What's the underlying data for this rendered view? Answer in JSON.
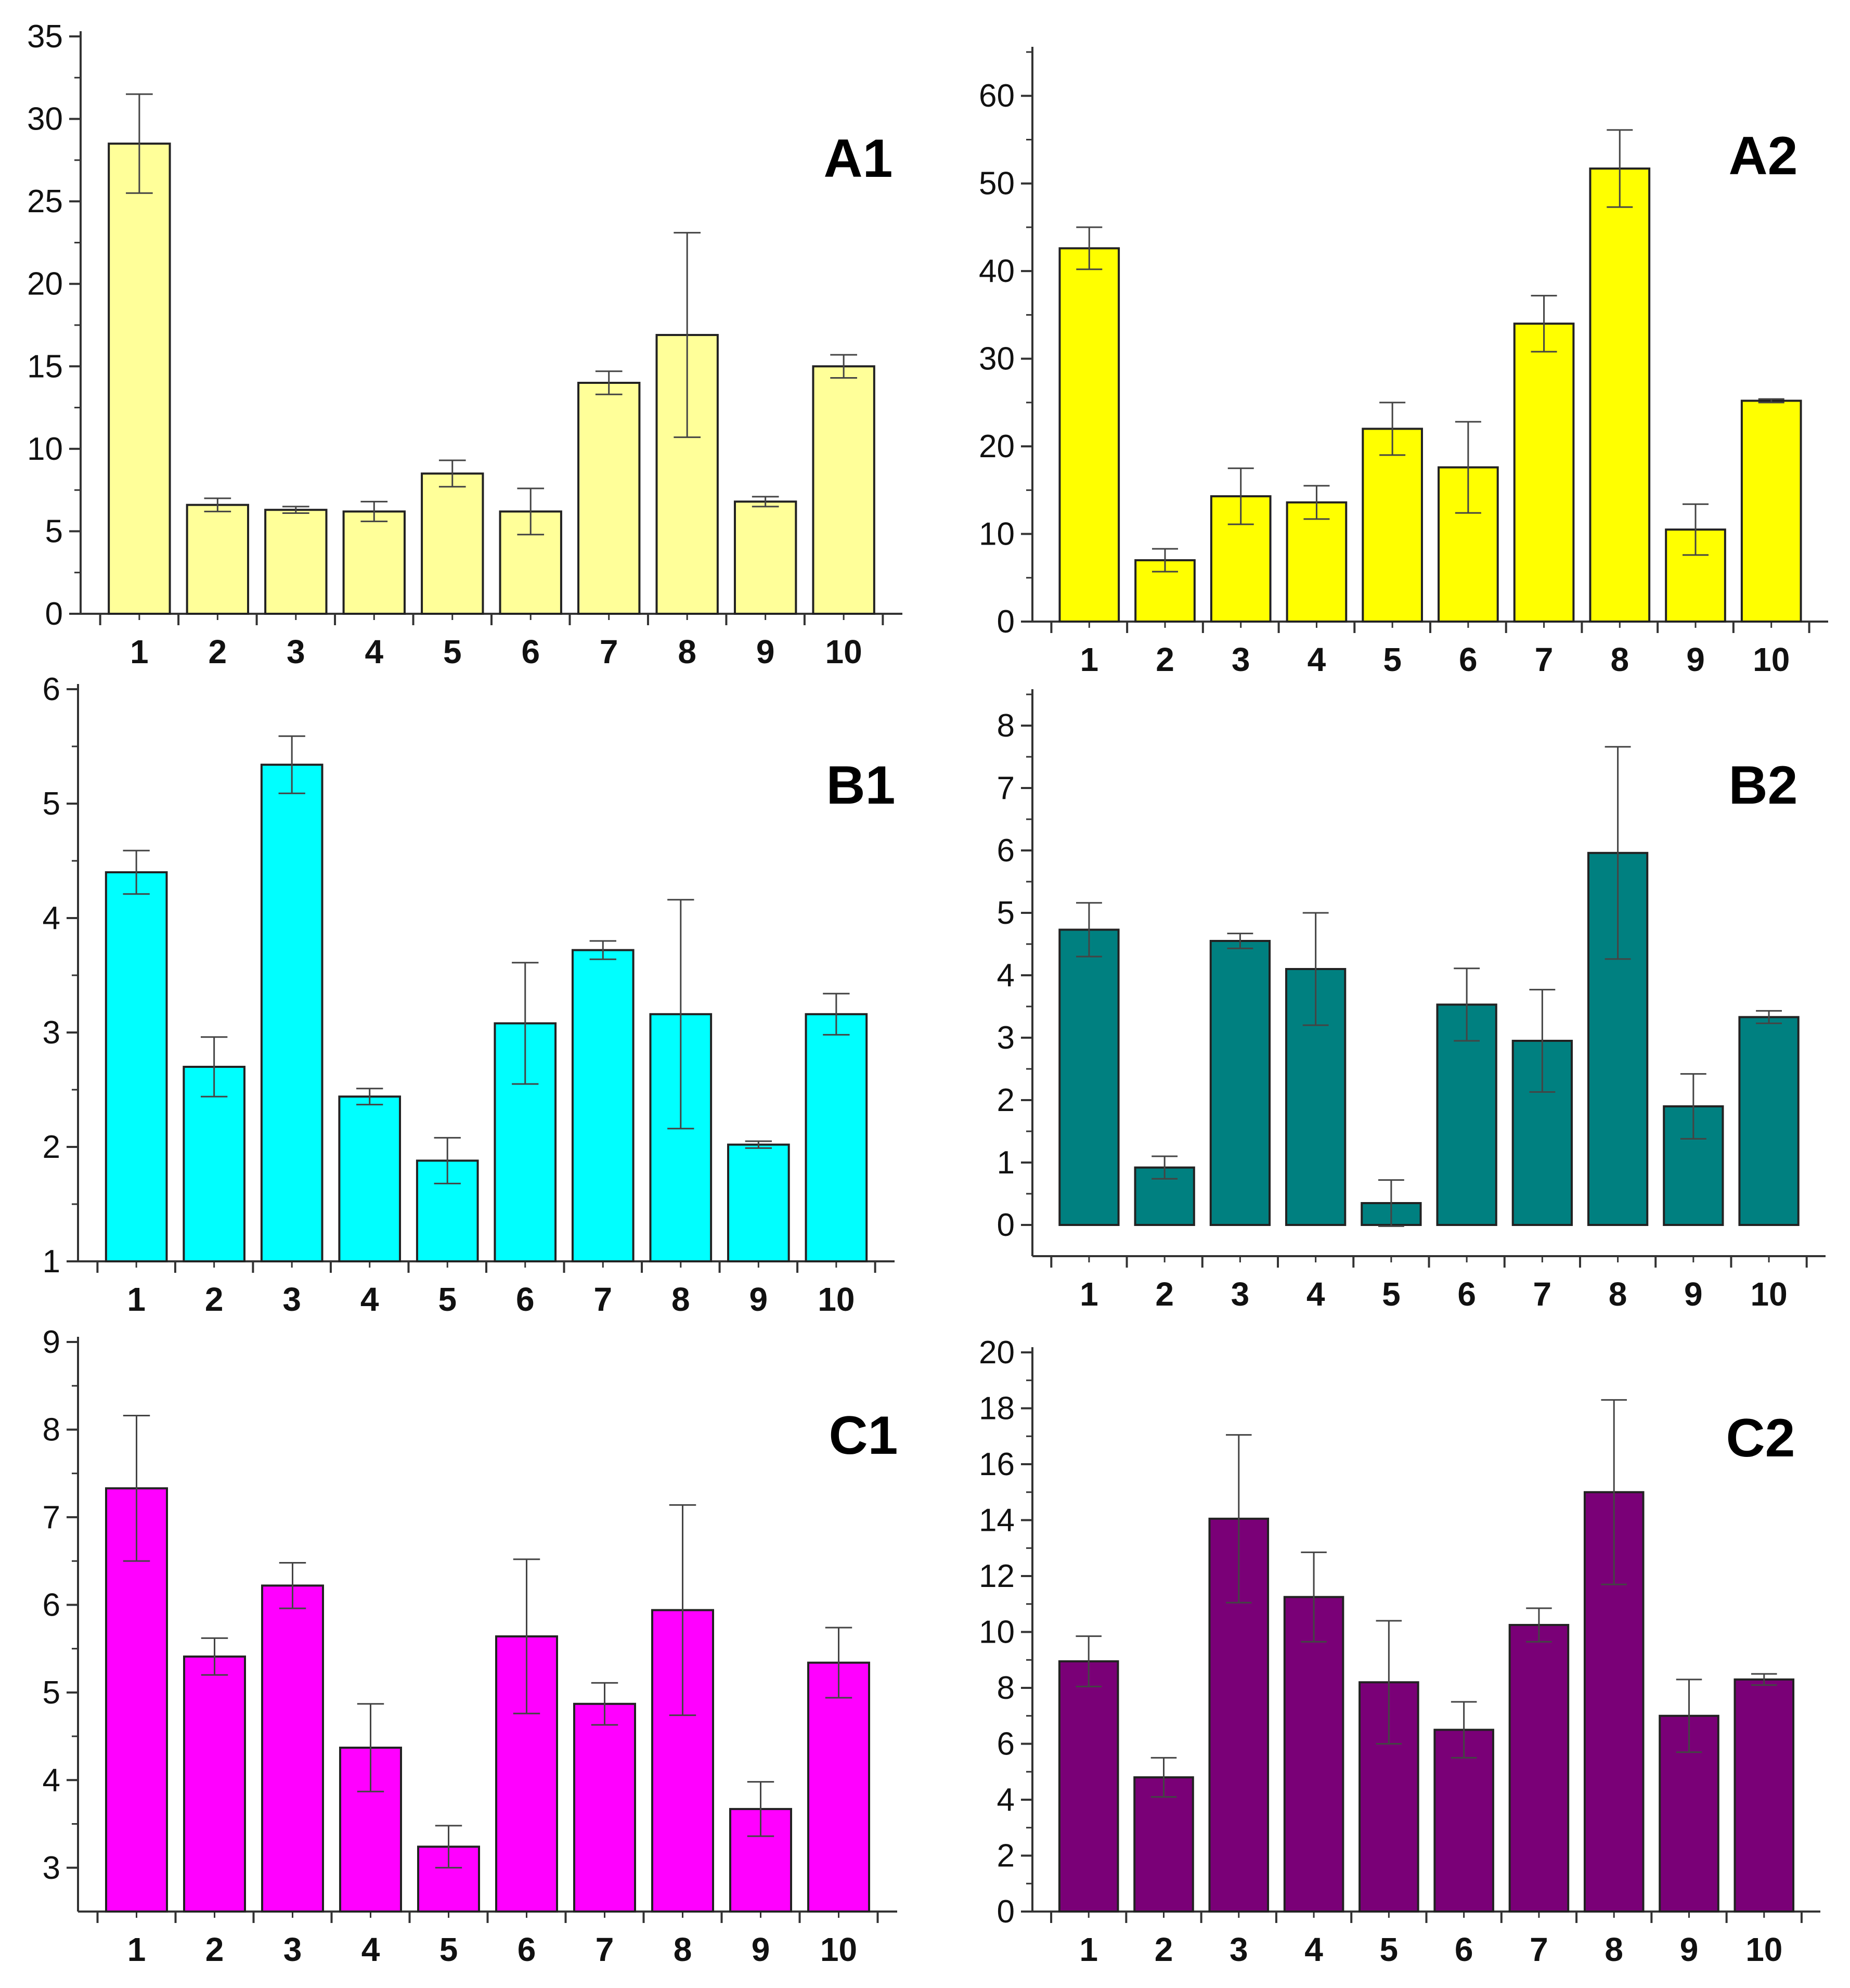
{
  "chart_data": [
    {
      "type": "bar",
      "title": "A1",
      "color": "#ffff99",
      "categories": [
        "1",
        "2",
        "3",
        "4",
        "5",
        "6",
        "7",
        "8",
        "9",
        "10"
      ],
      "values": [
        28.5,
        6.6,
        6.3,
        6.2,
        8.5,
        6.2,
        14.0,
        16.9,
        6.8,
        15.0
      ],
      "errors": [
        3.0,
        0.4,
        0.2,
        0.6,
        0.8,
        1.4,
        0.7,
        6.2,
        0.3,
        0.7
      ],
      "ylim": [
        0,
        35
      ],
      "yticks": [
        0,
        5,
        10,
        15,
        20,
        25,
        30,
        35
      ],
      "xlabel": "",
      "ylabel": ""
    },
    {
      "type": "bar",
      "title": "A2",
      "color": "#ffff00",
      "categories": [
        "1",
        "2",
        "3",
        "4",
        "5",
        "6",
        "7",
        "8",
        "9",
        "10"
      ],
      "values": [
        42.6,
        7.0,
        14.3,
        13.6,
        22.0,
        17.6,
        34.0,
        51.7,
        10.5,
        25.2
      ],
      "errors": [
        2.4,
        1.3,
        3.2,
        1.9,
        3.0,
        5.2,
        3.2,
        4.4,
        2.9,
        0.2
      ],
      "ylim": [
        0,
        65
      ],
      "yticks": [
        0,
        10,
        20,
        30,
        40,
        50,
        60
      ],
      "xlabel": "",
      "ylabel": ""
    },
    {
      "type": "bar",
      "title": "B1",
      "color": "#00ffff",
      "categories": [
        "1",
        "2",
        "3",
        "4",
        "5",
        "6",
        "7",
        "8",
        "9",
        "10"
      ],
      "values": [
        4.4,
        2.7,
        5.34,
        2.44,
        1.88,
        3.08,
        3.72,
        3.16,
        2.02,
        3.16
      ],
      "errors": [
        0.19,
        0.26,
        0.25,
        0.07,
        0.2,
        0.53,
        0.08,
        1.0,
        0.03,
        0.18
      ],
      "ylim": [
        1,
        6
      ],
      "yticks": [
        1,
        2,
        3,
        4,
        5,
        6
      ],
      "xlabel": "",
      "ylabel": ""
    },
    {
      "type": "bar",
      "title": "B2",
      "color": "#008080",
      "categories": [
        "1",
        "2",
        "3",
        "4",
        "5",
        "6",
        "7",
        "8",
        "9",
        "10"
      ],
      "values": [
        4.73,
        0.92,
        4.55,
        4.1,
        0.35,
        3.53,
        2.95,
        5.96,
        1.9,
        3.33
      ],
      "errors": [
        0.43,
        0.18,
        0.12,
        0.9,
        0.37,
        0.58,
        0.82,
        1.7,
        0.52,
        0.1
      ],
      "ylim": [
        -0.5,
        8.5
      ],
      "yticks": [
        0,
        1,
        2,
        3,
        4,
        5,
        6,
        7,
        8
      ],
      "xlabel": "",
      "ylabel": ""
    },
    {
      "type": "bar",
      "title": "C1",
      "color": "#ff00ff",
      "categories": [
        "1",
        "2",
        "3",
        "4",
        "5",
        "6",
        "7",
        "8",
        "9",
        "10"
      ],
      "values": [
        7.33,
        5.41,
        6.22,
        4.37,
        3.24,
        5.64,
        4.87,
        5.94,
        3.67,
        5.34
      ],
      "errors": [
        0.83,
        0.21,
        0.26,
        0.5,
        0.24,
        0.88,
        0.24,
        1.2,
        0.31,
        0.4
      ],
      "ylim": [
        2.5,
        9
      ],
      "yticks": [
        3,
        4,
        5,
        6,
        7,
        8,
        9
      ],
      "xlabel": "",
      "ylabel": ""
    },
    {
      "type": "bar",
      "title": "C2",
      "color": "#7a0077",
      "categories": [
        "1",
        "2",
        "3",
        "4",
        "5",
        "6",
        "7",
        "8",
        "9",
        "10"
      ],
      "values": [
        8.95,
        4.8,
        14.05,
        11.25,
        8.2,
        6.5,
        10.25,
        15.0,
        7.0,
        8.3
      ],
      "errors": [
        0.9,
        0.7,
        3.0,
        1.6,
        2.2,
        1.0,
        0.6,
        3.3,
        1.3,
        0.2
      ],
      "ylim": [
        0,
        20
      ],
      "yticks": [
        0,
        2,
        4,
        6,
        8,
        10,
        12,
        14,
        16,
        18,
        20
      ],
      "xlabel": "",
      "ylabel": ""
    }
  ]
}
